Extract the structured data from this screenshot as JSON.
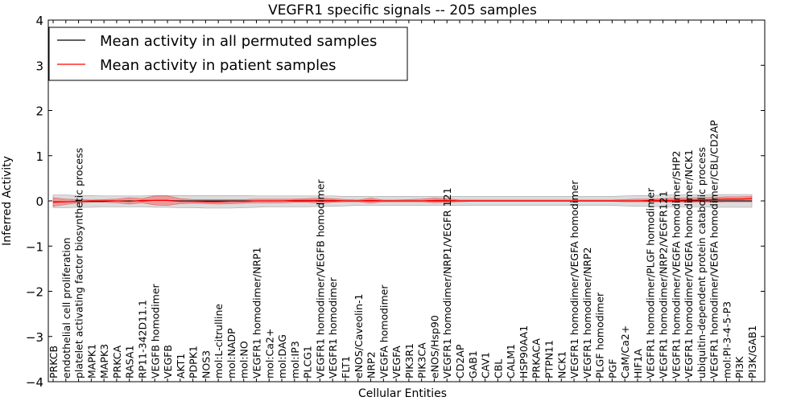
{
  "chart_data": {
    "type": "line",
    "title": "VEGFR1 specific signals -- 205 samples",
    "xlabel": "Cellular Entities",
    "ylabel": "Inferred Activity",
    "ylim": [
      -4,
      4
    ],
    "yticks": [
      -4,
      -3,
      -2,
      -1,
      0,
      1,
      2,
      3,
      4
    ],
    "ytick_labels": [
      "−4",
      "−3",
      "−2",
      "−1",
      "0",
      "1",
      "2",
      "3",
      "4"
    ],
    "legend_position": "top-left",
    "categories": [
      "PRKCB",
      "endothelial cell proliferation",
      "platelet activating factor biosynthetic process",
      "MAPK1",
      "MAPK3",
      "PRKCA",
      "RASA1",
      "RP11-342D11.1",
      "VEGFB homodimer",
      "VEGFB",
      "AKT1",
      "PDPK1",
      "NOS3",
      "mol:L-citrulline",
      "mol:NADP",
      "mol:NO",
      "VEGFR1 homodimer/NRP1",
      "mol:Ca2+",
      "mol:DAG",
      "mol:IP3",
      "PLCG1",
      "VEGFR1 homodimer/VEGFB homodimer",
      "VEGFR1 homodimer",
      "FLT1",
      "eNOS/Caveolin-1",
      "NRP2",
      "VEGFA homodimer",
      "VEGFA",
      "PIK3R1",
      "PIK3CA",
      "eNOS/Hsp90",
      "VEGFR1 homodimer/NRP1/VEGFR 121",
      "CD2AP",
      "GAB1",
      "CAV1",
      "CBL",
      "CALM1",
      "HSP90AA1",
      "PRKACA",
      "PTPN11",
      "NCK1",
      "VEGFR1 homodimer/VEGFA homodimer",
      "VEGFR1 homodimer/NRP2",
      "PLGF homodimer",
      "PGF",
      "CaM/Ca2+",
      "HIF1A",
      "VEGFR1 homodimer/PLGF homodimer",
      "VEGFR1 homodimer/NRP2/VEGFR121",
      "VEGFR1 homodimer/VEGFA homodimer/SHP2",
      "VEGFR1 homodimer/VEGFA homodimer/NCK1",
      "ubiquitin-dependent protein catabolic process",
      "VEGFR1 homodimer/VEGFA homodimer/CBL/CD2AP",
      "mol:PI-3-4-5-P3",
      "PI3K",
      "PI3K/GAB1"
    ],
    "series": [
      {
        "name": "Mean activity in all permuted samples",
        "color": "#000000",
        "values": [
          -0.02,
          -0.02,
          -0.01,
          -0.01,
          -0.01,
          0.0,
          0.0,
          0.0,
          0.01,
          0.01,
          0.0,
          0.0,
          0.0,
          0.0,
          0.0,
          0.0,
          0.0,
          0.0,
          0.0,
          0.0,
          0.0,
          0.0,
          0.0,
          0.0,
          0.0,
          0.0,
          0.0,
          0.0,
          0.0,
          0.0,
          0.0,
          0.0,
          0.0,
          0.0,
          0.0,
          0.0,
          0.0,
          0.0,
          0.0,
          0.0,
          0.0,
          0.0,
          0.0,
          0.0,
          0.0,
          0.0,
          0.0,
          0.0,
          0.0,
          0.0,
          0.0,
          0.0,
          0.0,
          0.0,
          0.0,
          0.0
        ],
        "band_low": [
          -0.15,
          -0.15,
          -0.14,
          -0.14,
          -0.13,
          -0.13,
          -0.13,
          -0.13,
          -0.14,
          -0.14,
          -0.15,
          -0.15,
          -0.16,
          -0.16,
          -0.16,
          -0.15,
          -0.14,
          -0.13,
          -0.13,
          -0.13,
          -0.13,
          -0.12,
          -0.12,
          -0.11,
          -0.1,
          -0.1,
          -0.1,
          -0.1,
          -0.1,
          -0.1,
          -0.1,
          -0.1,
          -0.1,
          -0.1,
          -0.1,
          -0.1,
          -0.1,
          -0.1,
          -0.1,
          -0.1,
          -0.1,
          -0.1,
          -0.1,
          -0.1,
          -0.1,
          -0.11,
          -0.12,
          -0.12,
          -0.13,
          -0.13,
          -0.13,
          -0.13,
          -0.14,
          -0.14,
          -0.14,
          -0.14
        ],
        "band_high": [
          0.13,
          0.13,
          0.12,
          0.12,
          0.11,
          0.11,
          0.11,
          0.11,
          0.12,
          0.12,
          0.12,
          0.12,
          0.12,
          0.12,
          0.12,
          0.12,
          0.11,
          0.11,
          0.11,
          0.11,
          0.11,
          0.11,
          0.11,
          0.1,
          0.1,
          0.1,
          0.1,
          0.1,
          0.1,
          0.1,
          0.1,
          0.1,
          0.1,
          0.1,
          0.1,
          0.1,
          0.1,
          0.1,
          0.1,
          0.1,
          0.1,
          0.1,
          0.1,
          0.1,
          0.1,
          0.11,
          0.12,
          0.12,
          0.13,
          0.13,
          0.13,
          0.13,
          0.14,
          0.14,
          0.14,
          0.14
        ],
        "band_color": "#c0c0c0"
      },
      {
        "name": "Mean activity in patient samples",
        "color": "#ff0000",
        "values": [
          -0.03,
          -0.02,
          -0.01,
          0.0,
          0.0,
          0.0,
          -0.01,
          0.01,
          0.01,
          0.01,
          -0.01,
          -0.01,
          -0.02,
          -0.02,
          -0.01,
          -0.01,
          0.0,
          0.0,
          0.0,
          0.01,
          0.01,
          0.01,
          0.01,
          0.0,
          0.0,
          0.01,
          0.0,
          0.0,
          0.0,
          0.0,
          0.01,
          0.01,
          0.0,
          0.0,
          0.0,
          0.0,
          0.0,
          0.0,
          0.0,
          0.0,
          0.0,
          0.0,
          0.0,
          0.0,
          0.0,
          0.0,
          0.0,
          0.01,
          0.01,
          0.01,
          0.02,
          0.02,
          0.03,
          0.04,
          0.04,
          0.05
        ],
        "band_low": [
          -0.12,
          -0.08,
          -0.04,
          -0.03,
          -0.03,
          -0.04,
          -0.07,
          -0.04,
          -0.09,
          -0.1,
          -0.06,
          -0.05,
          -0.06,
          -0.07,
          -0.06,
          -0.05,
          -0.04,
          -0.04,
          -0.04,
          -0.03,
          -0.03,
          -0.05,
          -0.03,
          -0.02,
          -0.02,
          -0.05,
          -0.02,
          -0.02,
          -0.02,
          -0.02,
          -0.04,
          -0.03,
          -0.02,
          -0.01,
          -0.01,
          -0.01,
          -0.01,
          -0.01,
          -0.01,
          -0.01,
          -0.01,
          -0.01,
          -0.01,
          -0.01,
          -0.01,
          -0.02,
          -0.02,
          -0.02,
          -0.02,
          -0.03,
          -0.03,
          -0.02,
          -0.03,
          -0.02,
          -0.02,
          -0.02
        ],
        "band_high": [
          0.07,
          0.04,
          0.03,
          0.02,
          0.03,
          0.04,
          0.07,
          0.05,
          0.11,
          0.11,
          0.05,
          0.03,
          0.03,
          0.03,
          0.03,
          0.03,
          0.04,
          0.04,
          0.04,
          0.04,
          0.05,
          0.06,
          0.05,
          0.03,
          0.02,
          0.06,
          0.02,
          0.02,
          0.03,
          0.04,
          0.06,
          0.05,
          0.02,
          0.02,
          0.02,
          0.02,
          0.02,
          0.02,
          0.02,
          0.02,
          0.02,
          0.02,
          0.02,
          0.02,
          0.02,
          0.03,
          0.04,
          0.04,
          0.05,
          0.06,
          0.07,
          0.07,
          0.08,
          0.09,
          0.09,
          0.1
        ],
        "band_color": "#f08080"
      }
    ]
  }
}
